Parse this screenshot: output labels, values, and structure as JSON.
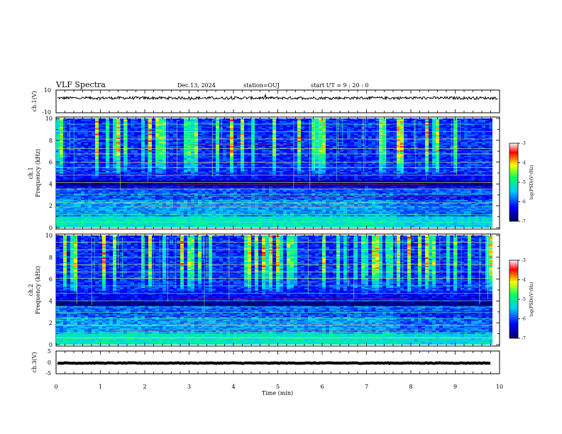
{
  "header": {
    "title": "VLF Spectra",
    "date": "Dec.13, 2024",
    "station": "station=OUJ",
    "start_ut": "start  UT =   9 : 20 : 0"
  },
  "chart_data": [
    {
      "type": "line",
      "panel": "ch1-waveform",
      "ylabel": "ch.1(V)",
      "ylim": [
        -10,
        10
      ],
      "yticks": [
        "10",
        "-10"
      ],
      "xlim": [
        0,
        10
      ],
      "baseline": 3,
      "noise_amplitude": 1.2
    },
    {
      "type": "heatmap",
      "panel": "ch1-spectrogram",
      "ylabel": "Frequency (kHz)",
      "channel_label": "ch.1",
      "ylim": [
        0,
        10
      ],
      "yticks": [
        "0",
        "2",
        "4",
        "6",
        "8",
        "10"
      ],
      "xlim": [
        0,
        10
      ],
      "colorbar": {
        "label": "log(PSD)(V²/Hz)",
        "range": [
          -7,
          -3
        ],
        "ticks": [
          "-3",
          "-4",
          "-5",
          "-6",
          "-7"
        ]
      },
      "bright_lines_khz": [
        0.4,
        1.1,
        1.8,
        2.2,
        3.0,
        3.5,
        4.1,
        4.8,
        5.5,
        6.0,
        6.8,
        7.3,
        8.2,
        8.9,
        9.6
      ],
      "dark_band_khz": [
        3.8,
        4.3
      ]
    },
    {
      "type": "heatmap",
      "panel": "ch2-spectrogram",
      "ylabel": "Frequency (kHz)",
      "channel_label": "ch.2",
      "ylim": [
        0,
        10
      ],
      "yticks": [
        "0",
        "2",
        "4",
        "6",
        "8",
        "10"
      ],
      "xlim": [
        0,
        10
      ],
      "colorbar": {
        "label": "log(PSD)(V²/Hz)",
        "range": [
          -7,
          -3
        ],
        "ticks": [
          "-3",
          "-4",
          "-5",
          "-6",
          "-7"
        ]
      },
      "bright_lines_khz": [
        0.5,
        1.0,
        1.7,
        2.3,
        2.9,
        3.4,
        4.0,
        4.7,
        5.4,
        6.1,
        6.7,
        7.4,
        8.1,
        8.8,
        9.5
      ],
      "dark_band_khz": [
        3.6,
        3.9
      ]
    },
    {
      "type": "line",
      "panel": "ch3-waveform",
      "ylabel": "ch.3(V)",
      "ylim": [
        -5,
        5
      ],
      "yticks": [
        "5",
        "0",
        "-5"
      ],
      "xlim": [
        0,
        10
      ],
      "baseline": 0,
      "noise_amplitude": 0.15
    }
  ],
  "xaxis": {
    "label": "Time (min)",
    "ticks": [
      "0",
      "1",
      "2",
      "3",
      "4",
      "5",
      "6",
      "7",
      "8",
      "9",
      "10"
    ]
  },
  "colors": {
    "colormap": [
      "#00005a",
      "#0000ff",
      "#00c8ff",
      "#00ff80",
      "#ffff00",
      "#ff0000",
      "#ffffff"
    ]
  }
}
